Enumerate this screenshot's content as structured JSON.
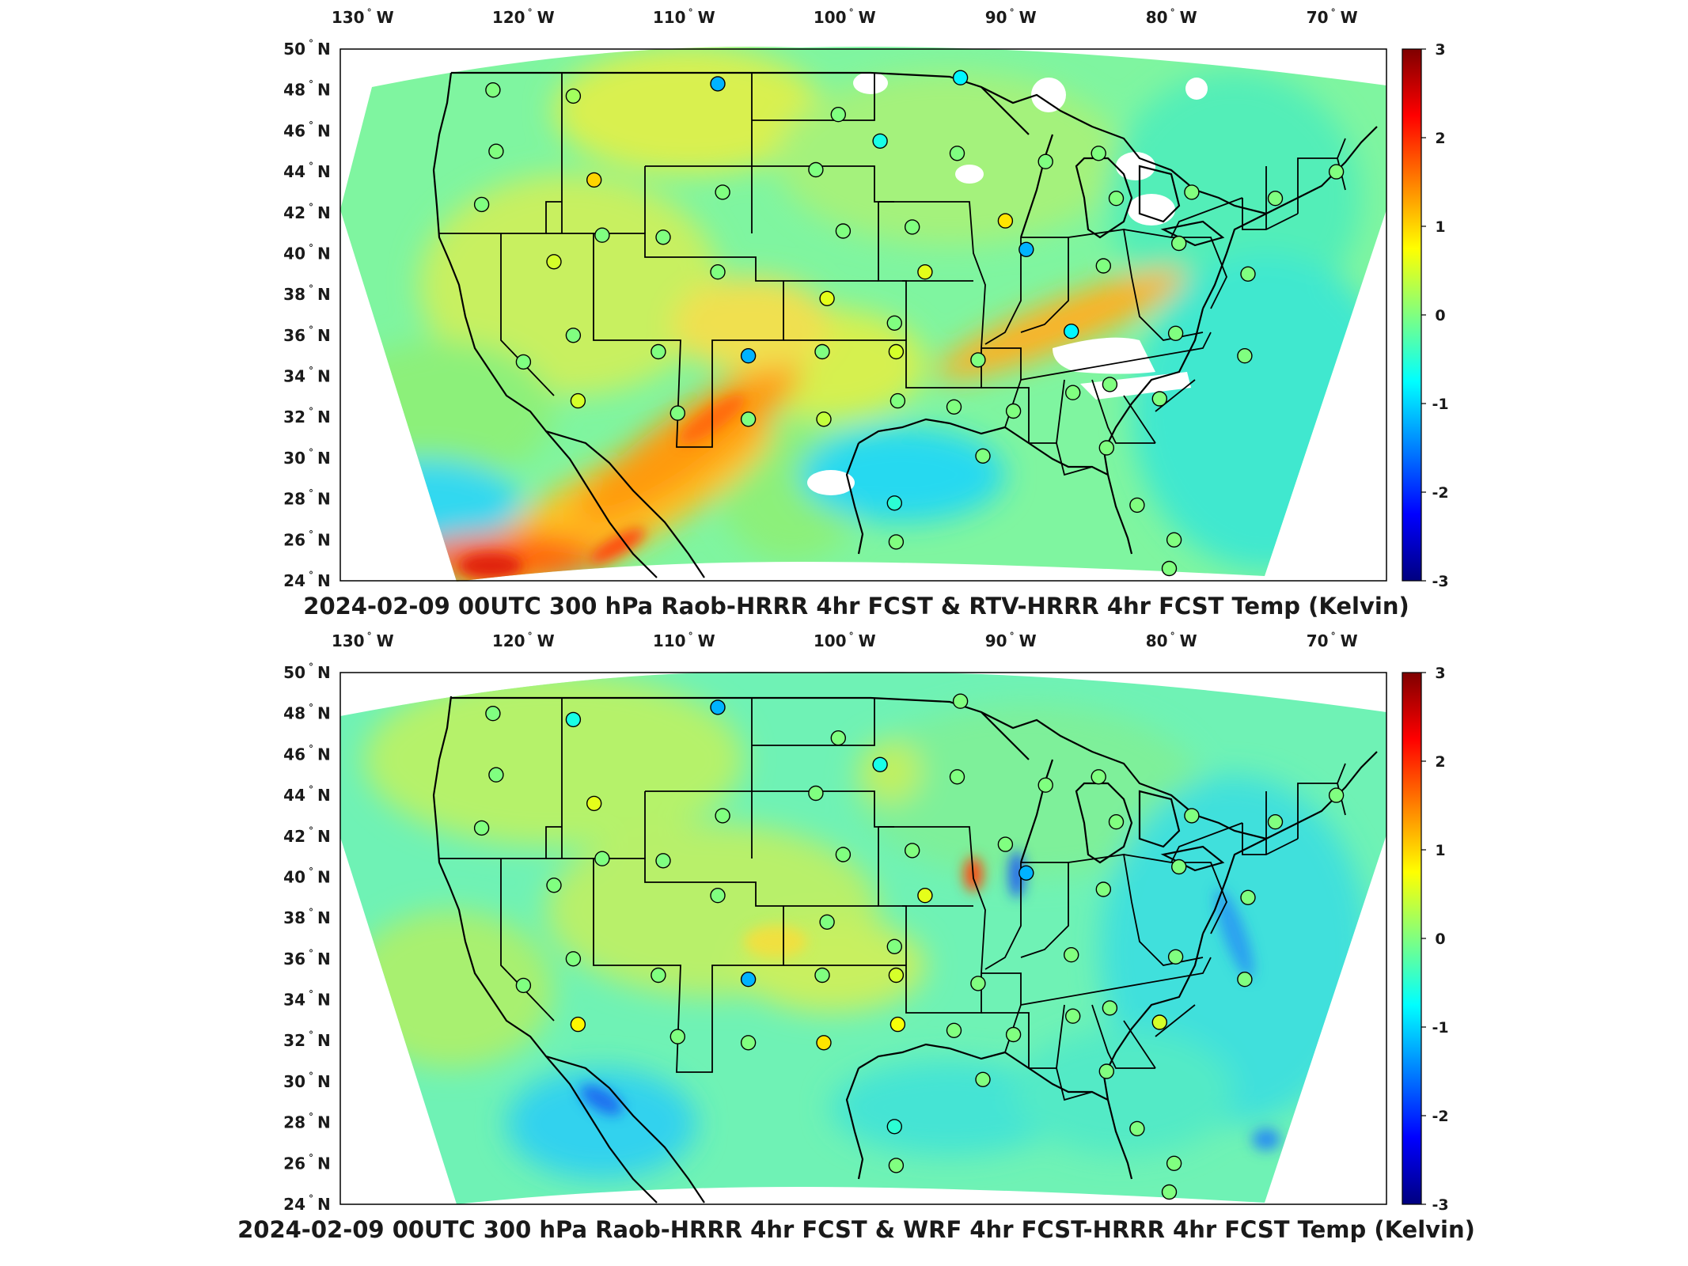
{
  "panels": [
    {
      "title": "2024-02-09 00UTC 300 hPa Raob-HRRR 4hr FCST & RTV-HRRR 4hr FCST Temp (Kelvin)",
      "field_description": "Temperature difference field over CONUS; warm band (orange/red) from southern Baja through New Mexico/Texas and along the Ohio Valley; cyan/blue off the southern California and Gulf coasts; white gaps over Great Lakes, Tennessee and northeast.",
      "stations": [
        {
          "lon": -122.5,
          "lat": 48.0,
          "value": 0.0
        },
        {
          "lon": -117.5,
          "lat": 47.7,
          "value": 0.2
        },
        {
          "lon": -108.5,
          "lat": 48.3,
          "value": -1.2
        },
        {
          "lon": -93.4,
          "lat": 48.6,
          "value": -0.8
        },
        {
          "lon": -101.0,
          "lat": 46.8,
          "value": 0.0
        },
        {
          "lon": -98.4,
          "lat": 45.5,
          "value": -0.6
        },
        {
          "lon": -93.6,
          "lat": 44.9,
          "value": 0.0
        },
        {
          "lon": -122.3,
          "lat": 45.0,
          "value": 0.0
        },
        {
          "lon": -116.2,
          "lat": 43.6,
          "value": 1.0
        },
        {
          "lon": -108.2,
          "lat": 43.0,
          "value": 0.0
        },
        {
          "lon": -102.4,
          "lat": 44.1,
          "value": 0.0
        },
        {
          "lon": -88.1,
          "lat": 44.5,
          "value": 0.0
        },
        {
          "lon": -84.8,
          "lat": 44.9,
          "value": 0.0
        },
        {
          "lon": -123.2,
          "lat": 42.4,
          "value": 0.0
        },
        {
          "lon": -115.7,
          "lat": 40.9,
          "value": 0.0
        },
        {
          "lon": -111.9,
          "lat": 40.8,
          "value": 0.0
        },
        {
          "lon": -100.7,
          "lat": 41.1,
          "value": 0.0
        },
        {
          "lon": -96.4,
          "lat": 41.3,
          "value": 0.0
        },
        {
          "lon": -90.6,
          "lat": 41.6,
          "value": 0.9
        },
        {
          "lon": -83.7,
          "lat": 42.7,
          "value": 0.0
        },
        {
          "lon": -79.0,
          "lat": 43.0,
          "value": 0.0
        },
        {
          "lon": -73.8,
          "lat": 42.7,
          "value": 0.0
        },
        {
          "lon": -70.0,
          "lat": 44.0,
          "value": 0.0
        },
        {
          "lon": -118.7,
          "lat": 39.6,
          "value": 0.5
        },
        {
          "lon": -108.5,
          "lat": 39.1,
          "value": 0.0
        },
        {
          "lon": -89.3,
          "lat": 40.2,
          "value": -1.2
        },
        {
          "lon": -84.5,
          "lat": 39.4,
          "value": 0.0
        },
        {
          "lon": -79.8,
          "lat": 40.5,
          "value": 0.0
        },
        {
          "lon": -75.5,
          "lat": 39.0,
          "value": 0.0
        },
        {
          "lon": -95.6,
          "lat": 39.1,
          "value": 0.6
        },
        {
          "lon": -101.7,
          "lat": 37.8,
          "value": 0.6
        },
        {
          "lon": -117.5,
          "lat": 36.0,
          "value": 0.0
        },
        {
          "lon": -112.2,
          "lat": 35.2,
          "value": 0.0
        },
        {
          "lon": -106.6,
          "lat": 35.0,
          "value": -1.2
        },
        {
          "lon": -97.5,
          "lat": 36.6,
          "value": 0.0
        },
        {
          "lon": -102.0,
          "lat": 35.2,
          "value": 0.0
        },
        {
          "lon": -97.4,
          "lat": 35.2,
          "value": 0.5
        },
        {
          "lon": -92.3,
          "lat": 34.8,
          "value": 0.0
        },
        {
          "lon": -86.5,
          "lat": 36.2,
          "value": -0.8
        },
        {
          "lon": -80.0,
          "lat": 36.1,
          "value": 0.0
        },
        {
          "lon": -75.7,
          "lat": 35.0,
          "value": 0.0
        },
        {
          "lon": -120.6,
          "lat": 34.7,
          "value": 0.0
        },
        {
          "lon": -117.2,
          "lat": 32.8,
          "value": 0.5
        },
        {
          "lon": -111.0,
          "lat": 32.2,
          "value": 0.0
        },
        {
          "lon": -106.6,
          "lat": 31.9,
          "value": 0.0
        },
        {
          "lon": -101.9,
          "lat": 31.9,
          "value": 0.4
        },
        {
          "lon": -97.3,
          "lat": 32.8,
          "value": 0.0
        },
        {
          "lon": -93.8,
          "lat": 32.5,
          "value": 0.0
        },
        {
          "lon": -90.1,
          "lat": 32.3,
          "value": 0.0
        },
        {
          "lon": -86.4,
          "lat": 33.2,
          "value": 0.0
        },
        {
          "lon": -84.1,
          "lat": 33.6,
          "value": 0.0
        },
        {
          "lon": -81.0,
          "lat": 32.9,
          "value": 0.0
        },
        {
          "lon": -92.0,
          "lat": 30.1,
          "value": 0.0
        },
        {
          "lon": -84.3,
          "lat": 30.5,
          "value": 0.0
        },
        {
          "lon": -97.5,
          "lat": 27.8,
          "value": -0.5
        },
        {
          "lon": -97.4,
          "lat": 25.9,
          "value": 0.0
        },
        {
          "lon": -82.4,
          "lat": 27.7,
          "value": 0.0
        },
        {
          "lon": -80.1,
          "lat": 26.0,
          "value": 0.0
        },
        {
          "lon": -80.4,
          "lat": 24.6,
          "value": 0.0
        }
      ]
    },
    {
      "title": "2024-02-09 00UTC 300 hPa Raob-HRRR 4hr FCST & WRF 4hr FCST-HRRR 4hr FCST Temp (Kelvin)",
      "field_description": "Mostly cyan/green field with yellow patches over interior west and Texas; small red/orange spot in Illinois; blue streaks off Baja and east coast.",
      "stations": [
        {
          "lon": -122.5,
          "lat": 48.0,
          "value": 0.0
        },
        {
          "lon": -117.5,
          "lat": 47.7,
          "value": -0.6
        },
        {
          "lon": -108.5,
          "lat": 48.3,
          "value": -1.2
        },
        {
          "lon": -93.4,
          "lat": 48.6,
          "value": 0.0
        },
        {
          "lon": -101.0,
          "lat": 46.8,
          "value": 0.0
        },
        {
          "lon": -98.4,
          "lat": 45.5,
          "value": -0.6
        },
        {
          "lon": -93.6,
          "lat": 44.9,
          "value": 0.0
        },
        {
          "lon": -122.3,
          "lat": 45.0,
          "value": 0.0
        },
        {
          "lon": -116.2,
          "lat": 43.6,
          "value": 0.6
        },
        {
          "lon": -108.2,
          "lat": 43.0,
          "value": 0.0
        },
        {
          "lon": -102.4,
          "lat": 44.1,
          "value": 0.0
        },
        {
          "lon": -88.1,
          "lat": 44.5,
          "value": 0.0
        },
        {
          "lon": -84.8,
          "lat": 44.9,
          "value": 0.0
        },
        {
          "lon": -123.2,
          "lat": 42.4,
          "value": 0.0
        },
        {
          "lon": -115.7,
          "lat": 40.9,
          "value": 0.0
        },
        {
          "lon": -111.9,
          "lat": 40.8,
          "value": 0.0
        },
        {
          "lon": -100.7,
          "lat": 41.1,
          "value": 0.0
        },
        {
          "lon": -96.4,
          "lat": 41.3,
          "value": 0.0
        },
        {
          "lon": -90.6,
          "lat": 41.6,
          "value": 0.0
        },
        {
          "lon": -83.7,
          "lat": 42.7,
          "value": 0.0
        },
        {
          "lon": -79.0,
          "lat": 43.0,
          "value": 0.0
        },
        {
          "lon": -73.8,
          "lat": 42.7,
          "value": 0.0
        },
        {
          "lon": -70.0,
          "lat": 44.0,
          "value": 0.0
        },
        {
          "lon": -118.7,
          "lat": 39.6,
          "value": 0.0
        },
        {
          "lon": -108.5,
          "lat": 39.1,
          "value": 0.0
        },
        {
          "lon": -89.3,
          "lat": 40.2,
          "value": -1.2
        },
        {
          "lon": -84.5,
          "lat": 39.4,
          "value": 0.0
        },
        {
          "lon": -79.8,
          "lat": 40.5,
          "value": 0.0
        },
        {
          "lon": -75.5,
          "lat": 39.0,
          "value": 0.0
        },
        {
          "lon": -95.6,
          "lat": 39.1,
          "value": 0.6
        },
        {
          "lon": -101.7,
          "lat": 37.8,
          "value": 0.0
        },
        {
          "lon": -117.5,
          "lat": 36.0,
          "value": 0.0
        },
        {
          "lon": -112.2,
          "lat": 35.2,
          "value": 0.0
        },
        {
          "lon": -106.6,
          "lat": 35.0,
          "value": -1.2
        },
        {
          "lon": -97.5,
          "lat": 36.6,
          "value": 0.0
        },
        {
          "lon": -102.0,
          "lat": 35.2,
          "value": 0.0
        },
        {
          "lon": -97.4,
          "lat": 35.2,
          "value": 0.5
        },
        {
          "lon": -92.3,
          "lat": 34.8,
          "value": 0.0
        },
        {
          "lon": -86.5,
          "lat": 36.2,
          "value": 0.0
        },
        {
          "lon": -80.0,
          "lat": 36.1,
          "value": 0.0
        },
        {
          "lon": -75.7,
          "lat": 35.0,
          "value": 0.0
        },
        {
          "lon": -120.6,
          "lat": 34.7,
          "value": 0.0
        },
        {
          "lon": -117.2,
          "lat": 32.8,
          "value": 0.8
        },
        {
          "lon": -111.0,
          "lat": 32.2,
          "value": 0.0
        },
        {
          "lon": -106.6,
          "lat": 31.9,
          "value": 0.0
        },
        {
          "lon": -101.9,
          "lat": 31.9,
          "value": 0.9
        },
        {
          "lon": -97.3,
          "lat": 32.8,
          "value": 0.7
        },
        {
          "lon": -93.8,
          "lat": 32.5,
          "value": 0.0
        },
        {
          "lon": -90.1,
          "lat": 32.3,
          "value": 0.0
        },
        {
          "lon": -86.4,
          "lat": 33.2,
          "value": 0.0
        },
        {
          "lon": -84.1,
          "lat": 33.6,
          "value": 0.0
        },
        {
          "lon": -81.0,
          "lat": 32.9,
          "value": 0.5
        },
        {
          "lon": -92.0,
          "lat": 30.1,
          "value": 0.0
        },
        {
          "lon": -84.3,
          "lat": 30.5,
          "value": 0.0
        },
        {
          "lon": -97.5,
          "lat": 27.8,
          "value": -0.5
        },
        {
          "lon": -97.4,
          "lat": 25.9,
          "value": 0.0
        },
        {
          "lon": -82.4,
          "lat": 27.7,
          "value": 0.0
        },
        {
          "lon": -80.1,
          "lat": 26.0,
          "value": 0.0
        },
        {
          "lon": -80.4,
          "lat": 24.6,
          "value": 0.0
        }
      ]
    }
  ],
  "lon_ticks": [
    {
      "num": "130",
      "hem": "W"
    },
    {
      "num": "120",
      "hem": "W"
    },
    {
      "num": "110",
      "hem": "W"
    },
    {
      "num": "100",
      "hem": "W"
    },
    {
      "num": "90",
      "hem": "W"
    },
    {
      "num": "80",
      "hem": "W"
    },
    {
      "num": "70",
      "hem": "W"
    }
  ],
  "lat_ticks": [
    {
      "num": "50",
      "hem": "N"
    },
    {
      "num": "48",
      "hem": "N"
    },
    {
      "num": "46",
      "hem": "N"
    },
    {
      "num": "44",
      "hem": "N"
    },
    {
      "num": "42",
      "hem": "N"
    },
    {
      "num": "40",
      "hem": "N"
    },
    {
      "num": "38",
      "hem": "N"
    },
    {
      "num": "36",
      "hem": "N"
    },
    {
      "num": "34",
      "hem": "N"
    },
    {
      "num": "32",
      "hem": "N"
    },
    {
      "num": "30",
      "hem": "N"
    },
    {
      "num": "28",
      "hem": "N"
    },
    {
      "num": "26",
      "hem": "N"
    },
    {
      "num": "24",
      "hem": "N"
    }
  ],
  "colorbar": {
    "ticks": [
      "3",
      "2",
      "1",
      "0",
      "-1",
      "-2",
      "-3"
    ],
    "min": -3,
    "max": 3,
    "colormap": "jet"
  },
  "colors": {
    "border": "#000000",
    "text": "#1a1a1a",
    "white_gap": "#ffffff"
  }
}
